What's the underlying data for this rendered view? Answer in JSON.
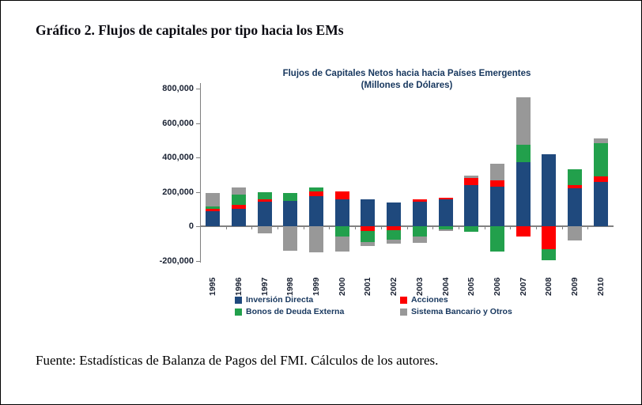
{
  "page": {
    "title": "Gráfico 2. Flujos de capitales por tipo hacia los EMs",
    "source_note": "Fuente: Estadísticas de Balanza de Pagos del FMI. Cálculos de los autores."
  },
  "chart_data": {
    "type": "bar",
    "stacked": true,
    "title": "Flujos de Capitales Netos hacia hacia Países Emergentes",
    "subtitle": "(Millones de Dólares)",
    "categories": [
      "1995",
      "1996",
      "1997",
      "1998",
      "1999",
      "2000",
      "2001",
      "2002",
      "2003",
      "2004",
      "2005",
      "2006",
      "2007",
      "2008",
      "2009",
      "2010"
    ],
    "series": [
      {
        "name": "Inversión Directa",
        "color": "#1F497D",
        "values": [
          90000,
          105000,
          145000,
          150000,
          175000,
          160000,
          160000,
          140000,
          145000,
          160000,
          240000,
          230000,
          375000,
          420000,
          220000,
          260000
        ]
      },
      {
        "name": "Acciones",
        "color": "#FE0000",
        "values": [
          15000,
          20000,
          15000,
          0,
          30000,
          45000,
          -25000,
          -20000,
          15000,
          5000,
          40000,
          40000,
          -60000,
          -130000,
          20000,
          30000
        ]
      },
      {
        "name": "Bonos de Deuda Externa",
        "color": "#22A04C",
        "values": [
          10000,
          60000,
          40000,
          45000,
          20000,
          -60000,
          -65000,
          -55000,
          -60000,
          -15000,
          -30000,
          -145000,
          100000,
          -65000,
          90000,
          195000
        ]
      },
      {
        "name": "Sistema Bancario y Otros",
        "color": "#989898",
        "values": [
          80000,
          40000,
          -40000,
          -140000,
          -150000,
          -85000,
          -25000,
          -25000,
          -35000,
          -10000,
          15000,
          95000,
          275000,
          0,
          -80000,
          25000
        ]
      }
    ],
    "ylim": [
      -200000,
      800000
    ],
    "ytick_interval": 200000,
    "ytick_labels": [
      "800,000",
      "600,000",
      "400,000",
      "200,000",
      "0",
      "-200,000"
    ],
    "xlabel": "",
    "ylabel": "",
    "grid": false,
    "legend_position": "bottom"
  }
}
